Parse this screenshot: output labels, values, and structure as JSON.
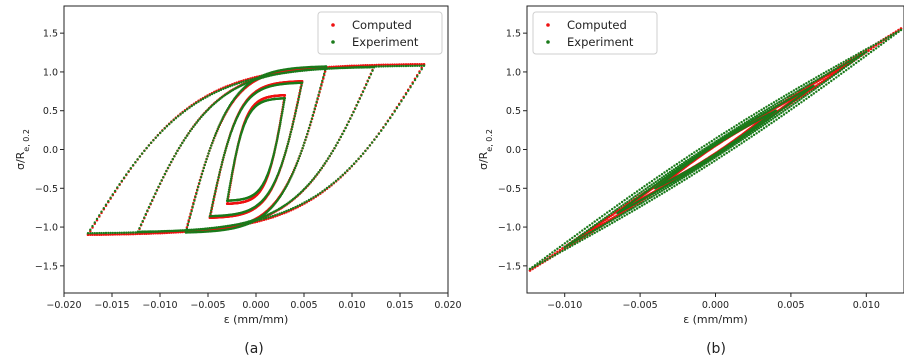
{
  "figure": {
    "captions": [
      "(a)",
      "(b)"
    ],
    "colors": {
      "computed": "#ee1111",
      "experiment": "#1a7a1a"
    }
  },
  "chart_data": [
    {
      "type": "scatter",
      "panel": "(a)",
      "xlabel": "ε (mm/mm)",
      "ylabel": "σ/R",
      "ylabel_sub": "e, 0.2",
      "xlim": [
        -0.02,
        0.02
      ],
      "ylim": [
        -1.85,
        1.85
      ],
      "x_ticks": [
        "−0.020",
        "−0.015",
        "−0.010",
        "−0.005",
        "0.000",
        "0.005",
        "0.010",
        "0.015",
        "0.020"
      ],
      "x_tick_values": [
        -0.02,
        -0.015,
        -0.01,
        -0.005,
        0.0,
        0.005,
        0.01,
        0.015,
        0.02
      ],
      "y_ticks": [
        "−1.5",
        "−1.0",
        "−0.5",
        "0.0",
        "0.5",
        "1.0",
        "1.5"
      ],
      "y_tick_values": [
        -1.5,
        -1.0,
        -0.5,
        0.0,
        0.5,
        1.0,
        1.5
      ],
      "legend": {
        "position": "top-right",
        "entries": [
          "Computed",
          "Experiment"
        ]
      },
      "grid": false,
      "series": [
        {
          "name": "Computed",
          "color": "#ee1111",
          "loops": [
            {
              "amplitude_strain": 0.0175,
              "peak_stress": 1.1
            },
            {
              "amplitude_strain": 0.0123,
              "peak_stress": 1.07
            },
            {
              "amplitude_strain": 0.0073,
              "peak_stress": 1.05
            },
            {
              "amplitude_strain": 0.0048,
              "peak_stress": 0.88
            },
            {
              "amplitude_strain": 0.003,
              "peak_stress": 0.7
            }
          ]
        },
        {
          "name": "Experiment",
          "color": "#1a7a1a",
          "loops": [
            {
              "amplitude_strain": 0.0175,
              "peak_stress": 1.08
            },
            {
              "amplitude_strain": 0.0123,
              "peak_stress": 1.06
            },
            {
              "amplitude_strain": 0.0073,
              "peak_stress": 1.07
            },
            {
              "amplitude_strain": 0.0048,
              "peak_stress": 0.86
            },
            {
              "amplitude_strain": 0.003,
              "peak_stress": 0.66
            }
          ]
        }
      ]
    },
    {
      "type": "scatter",
      "panel": "(b)",
      "xlabel": "ε (mm/mm)",
      "ylabel": "σ/R",
      "ylabel_sub": "e, 0.2",
      "xlim": [
        -0.0125,
        0.0125
      ],
      "ylim": [
        -1.85,
        1.85
      ],
      "x_ticks": [
        "−0.010",
        "−0.005",
        "0.000",
        "0.005",
        "0.010"
      ],
      "x_tick_values": [
        -0.01,
        -0.005,
        0.0,
        0.005,
        0.01
      ],
      "y_ticks": [
        "−1.5",
        "−1.0",
        "−0.5",
        "0.0",
        "0.5",
        "1.0",
        "1.5"
      ],
      "y_tick_values": [
        -1.5,
        -1.0,
        -0.5,
        0.0,
        0.5,
        1.0,
        1.5
      ],
      "legend": {
        "position": "top-left",
        "entries": [
          "Computed",
          "Experiment"
        ]
      },
      "grid": false,
      "series": [
        {
          "name": "Computed",
          "color": "#ee1111",
          "loops": [
            {
              "amplitude_strain": 0.0123,
              "peak_stress": 1.56,
              "half_width_stress": 0.05
            },
            {
              "amplitude_strain": 0.0095,
              "peak_stress": 1.2,
              "half_width_stress": 0.05
            },
            {
              "amplitude_strain": 0.006,
              "peak_stress": 0.76,
              "half_width_stress": 0.06
            },
            {
              "amplitude_strain": 0.0035,
              "peak_stress": 0.45,
              "half_width_stress": 0.05
            }
          ]
        },
        {
          "name": "Experiment",
          "color": "#1a7a1a",
          "loops": [
            {
              "amplitude_strain": 0.0123,
              "peak_stress": 1.54,
              "half_width_stress": 0.14
            },
            {
              "amplitude_strain": 0.01,
              "peak_stress": 1.26,
              "half_width_stress": 0.1
            },
            {
              "amplitude_strain": 0.0065,
              "peak_stress": 0.82,
              "half_width_stress": 0.08
            },
            {
              "amplitude_strain": 0.004,
              "peak_stress": 0.5,
              "half_width_stress": 0.06
            }
          ]
        }
      ]
    }
  ]
}
